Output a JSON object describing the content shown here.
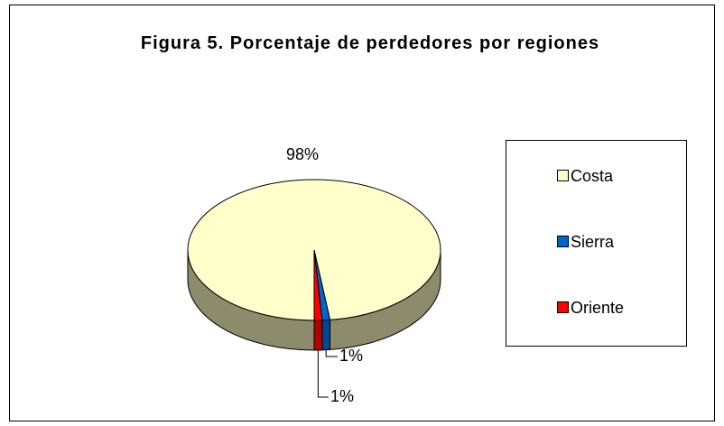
{
  "chart_data": {
    "type": "pie",
    "title": "Figura 5. Porcentaje de perdedores por regiones",
    "categories": [
      "Costa",
      "Sierra",
      "Oriente"
    ],
    "values": [
      98,
      1,
      1
    ],
    "value_labels": [
      "98%",
      "1%",
      "1%"
    ],
    "colors": [
      "#ffffcc",
      "#0066cc",
      "#ff0000"
    ],
    "legend": "right"
  }
}
